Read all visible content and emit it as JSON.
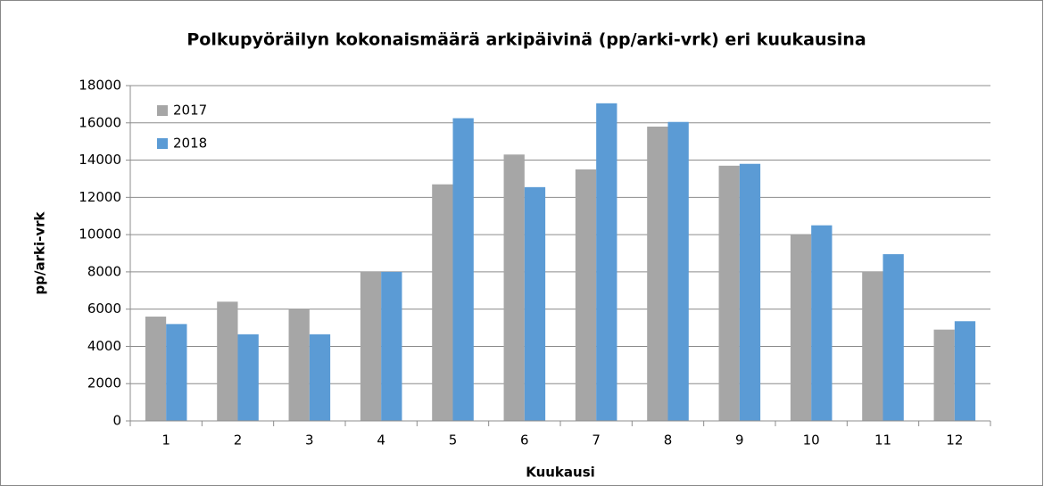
{
  "chart_data": {
    "type": "bar",
    "title": "Polkupyöräilyn kokonaismäärä arkipäivinä (pp/arki-vrk) eri kuukausina",
    "xlabel": "Kuukausi",
    "ylabel": "pp/arki-vrk",
    "categories": [
      "1",
      "2",
      "3",
      "4",
      "5",
      "6",
      "7",
      "8",
      "9",
      "10",
      "11",
      "12"
    ],
    "series": [
      {
        "name": "2017",
        "color": "#a6a6a6",
        "values": [
          5600,
          6400,
          6000,
          8000,
          12700,
          14300,
          13500,
          15800,
          13700,
          10000,
          8000,
          4900
        ]
      },
      {
        "name": "2018",
        "color": "#5b9bd5",
        "values": [
          5200,
          4650,
          4650,
          8000,
          16250,
          12550,
          17050,
          16050,
          13800,
          10500,
          8950,
          5350
        ]
      }
    ],
    "ylim": [
      0,
      18000
    ],
    "yticks": [
      0,
      2000,
      4000,
      6000,
      8000,
      10000,
      12000,
      14000,
      16000,
      18000
    ],
    "grid": true,
    "legend": "top-left"
  }
}
